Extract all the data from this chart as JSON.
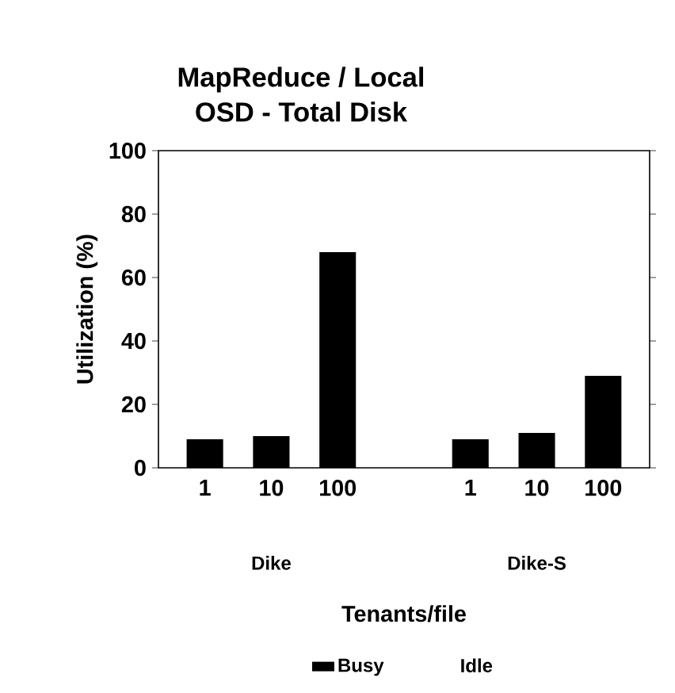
{
  "chart_data": {
    "type": "bar",
    "title": "MapReduce / Local\nOSD - Total Disk",
    "xlabel": "Tenants/file",
    "ylabel": "Utilization (%)",
    "categories": [
      "1",
      "10",
      "100",
      null,
      "1",
      "10",
      "100"
    ],
    "annotations": [
      "Dike",
      "Dike-S"
    ],
    "stacked": true,
    "series": [
      {
        "name": "Busy",
        "color": "#000000",
        "values": [
          9,
          10,
          68,
          null,
          9,
          11,
          29
        ]
      },
      {
        "name": "Idle",
        "values": [
          null,
          null,
          null,
          null,
          null,
          null,
          null
        ]
      }
    ],
    "ylim": [
      0,
      100
    ],
    "yticks": [
      0,
      20,
      40,
      60,
      80,
      100
    ],
    "legend": "bottom"
  }
}
